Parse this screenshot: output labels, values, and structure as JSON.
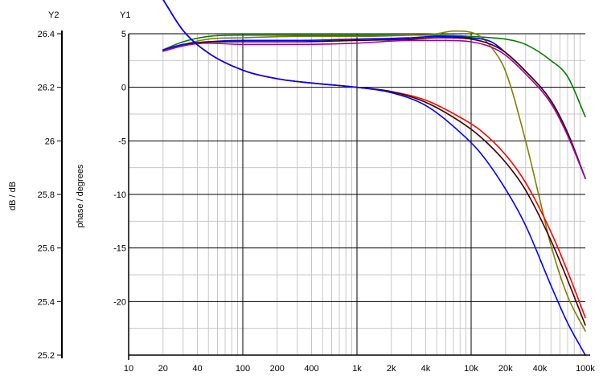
{
  "chart_data": {
    "type": "line",
    "title": "",
    "xscale": "log",
    "xlim": [
      10,
      100000
    ],
    "x_ticks": [
      10,
      20,
      40,
      100,
      200,
      400,
      1000,
      2000,
      4000,
      10000,
      20000,
      40000,
      100000
    ],
    "x_tick_labels": [
      "10",
      "20",
      "40",
      "100",
      "200",
      "400",
      "1k",
      "2k",
      "4k",
      "10k",
      "20k",
      "40k",
      "100k"
    ],
    "y1": {
      "title": "Y1",
      "label": "phase / degrees",
      "lim": [
        -25,
        5
      ],
      "ticks": [
        5,
        0,
        -5,
        -10,
        -15,
        -20
      ],
      "tick_labels": [
        "5",
        "0",
        "-5",
        "-10",
        "-15",
        "-20"
      ]
    },
    "y2": {
      "title": "Y2",
      "label": "dB / dB",
      "lim": [
        25.2,
        26.4
      ],
      "ticks": [
        26.4,
        26.2,
        26,
        25.8,
        25.6,
        25.4,
        25.2
      ],
      "tick_labels": [
        "26.4",
        "26.2",
        "26",
        "25.8",
        "25.6",
        "25.4",
        "25.2"
      ]
    },
    "grid": true,
    "series": [
      {
        "axis": "y2",
        "color": "#008000",
        "x": [
          20,
          30,
          50,
          100,
          300,
          1000,
          5000,
          10000,
          15000,
          20000,
          30000,
          50000,
          70000,
          100000
        ],
        "y": [
          26.34,
          26.37,
          26.39,
          26.395,
          26.395,
          26.395,
          26.395,
          26.39,
          26.385,
          26.38,
          26.36,
          26.3,
          26.24,
          26.09
        ]
      },
      {
        "axis": "y2",
        "color": "#808000",
        "x": [
          20,
          30,
          50,
          100,
          300,
          1000,
          3000,
          5000,
          7000,
          8000,
          10000,
          12000,
          15000,
          20000,
          30000,
          40000,
          50000,
          70000,
          100000
        ],
        "y": [
          26.34,
          26.36,
          26.38,
          26.385,
          26.39,
          26.39,
          26.395,
          26.4,
          26.41,
          26.41,
          26.405,
          26.39,
          26.35,
          26.26,
          26.0,
          25.78,
          25.61,
          25.42,
          25.29
        ]
      },
      {
        "axis": "y2",
        "color": "#0000ff",
        "x": [
          20,
          30,
          50,
          100,
          300,
          1000,
          3000,
          5000,
          10000,
          15000,
          20000,
          30000,
          50000,
          70000,
          100000
        ],
        "y": [
          26.34,
          26.36,
          26.37,
          26.375,
          26.375,
          26.38,
          26.385,
          26.39,
          26.385,
          26.37,
          26.33,
          26.26,
          26.15,
          26.03,
          25.86
        ]
      },
      {
        "axis": "y2",
        "color": "#400000",
        "x": [
          20,
          30,
          50,
          100,
          300,
          1000,
          3000,
          5000,
          10000,
          15000,
          20000,
          30000,
          50000,
          70000,
          100000
        ],
        "y": [
          26.335,
          26.355,
          26.37,
          26.37,
          26.37,
          26.375,
          26.38,
          26.385,
          26.38,
          26.36,
          26.33,
          26.26,
          26.15,
          26.03,
          25.86
        ]
      },
      {
        "axis": "y2",
        "color": "#a000a0",
        "x": [
          20,
          30,
          50,
          100,
          300,
          1000,
          3000,
          5000,
          10000,
          15000,
          20000,
          30000,
          50000,
          70000,
          100000
        ],
        "y": [
          26.335,
          26.355,
          26.365,
          26.36,
          26.36,
          26.365,
          26.375,
          26.375,
          26.37,
          26.35,
          26.32,
          26.25,
          26.14,
          26.02,
          25.86
        ]
      },
      {
        "axis": "y1",
        "color": "#ff0000",
        "x": [
          20,
          30,
          50,
          100,
          200,
          400,
          1000,
          2000,
          4000,
          8000,
          12000,
          20000,
          30000,
          50000,
          70000,
          100000
        ],
        "y": [
          8.2,
          5.3,
          3.2,
          1.6,
          0.8,
          0.4,
          0.0,
          -0.4,
          -1.2,
          -2.8,
          -4.0,
          -6.3,
          -8.9,
          -13.5,
          -17.2,
          -21.5
        ]
      },
      {
        "axis": "y1",
        "color": "#400000",
        "x": [
          20,
          30,
          50,
          100,
          200,
          400,
          1000,
          2000,
          4000,
          8000,
          12000,
          20000,
          30000,
          50000,
          70000,
          100000
        ],
        "y": [
          8.2,
          5.3,
          3.2,
          1.6,
          0.8,
          0.4,
          0.0,
          -0.4,
          -1.4,
          -3.2,
          -4.6,
          -7.0,
          -9.6,
          -14.3,
          -18.0,
          -22.2
        ]
      },
      {
        "axis": "y1",
        "color": "#0000ff",
        "x": [
          20,
          30,
          50,
          100,
          200,
          400,
          1000,
          2000,
          4000,
          8000,
          12000,
          20000,
          30000,
          50000,
          70000,
          100000
        ],
        "y": [
          8.2,
          5.3,
          3.2,
          1.6,
          0.8,
          0.4,
          0.0,
          -0.5,
          -1.7,
          -4.2,
          -6.1,
          -9.5,
          -12.9,
          -18.5,
          -22.0,
          -25.0
        ]
      }
    ]
  }
}
